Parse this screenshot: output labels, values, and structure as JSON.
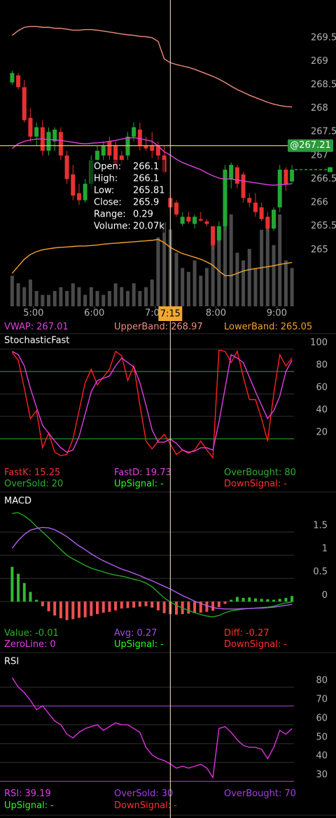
{
  "chart_data": [
    {
      "type": "candlestick",
      "x": [
        279,
        285,
        291,
        297,
        303,
        309,
        315,
        321,
        327,
        333,
        339,
        345,
        351,
        357,
        363,
        369,
        375,
        381,
        387,
        393,
        399,
        405,
        411,
        417,
        423,
        429,
        435,
        441,
        447,
        453,
        459,
        465,
        471,
        477,
        483,
        489,
        495,
        501,
        507,
        513,
        519,
        525,
        531,
        537,
        543,
        549,
        555
      ],
      "xlim": [
        267,
        557
      ],
      "xticks": [
        {
          "value": 300,
          "label": "5:00"
        },
        {
          "value": 360,
          "label": "6:00"
        },
        {
          "value": 420,
          "label": "7:00"
        },
        {
          "value": 480,
          "label": "8:00"
        },
        {
          "value": 540,
          "label": "9:00"
        }
      ],
      "ylim": [
        263.8,
        270.3
      ],
      "yticks": [
        265,
        265.5,
        266,
        266.5,
        267,
        267.5,
        268,
        268.5,
        269,
        269.5
      ],
      "grid": false,
      "open": [
        268.55,
        268.7,
        268.45,
        267.8,
        267.4,
        267.6,
        267.1,
        267.3,
        267.5,
        267.0,
        266.6,
        266.2,
        266.05,
        266.4,
        266.9,
        267.0,
        267.3,
        267.2,
        267.0,
        267.0,
        267.4,
        267.55,
        267.2,
        267.2,
        267.2,
        267.0,
        266.1,
        266.0,
        265.55,
        265.7,
        265.55,
        265.65,
        265.6,
        265.5,
        265.2,
        265.5,
        266.5,
        266.75,
        266.6,
        266.1,
        266.0,
        265.9,
        265.7,
        265.45,
        265.9,
        266.7,
        266.45
      ],
      "high": [
        268.8,
        268.75,
        268.6,
        268.0,
        267.7,
        267.75,
        267.6,
        267.6,
        267.6,
        267.1,
        266.8,
        266.4,
        266.5,
        267.0,
        267.2,
        267.3,
        267.4,
        267.3,
        267.1,
        267.5,
        267.7,
        267.7,
        267.4,
        267.5,
        267.3,
        267.2,
        266.1,
        266.05,
        265.8,
        265.8,
        265.75,
        265.8,
        265.65,
        265.5,
        265.6,
        266.8,
        266.85,
        266.8,
        266.65,
        266.2,
        266.2,
        266.0,
        265.8,
        265.9,
        266.8,
        266.75,
        266.8
      ],
      "low": [
        268.5,
        268.4,
        267.7,
        267.3,
        267.2,
        267.0,
        267.0,
        267.1,
        266.9,
        266.4,
        266.05,
        265.95,
        266.0,
        266.3,
        266.8,
        266.9,
        266.9,
        266.7,
        266.8,
        266.9,
        267.3,
        267.1,
        267.1,
        266.95,
        266.9,
        266.6,
        265.81,
        265.7,
        265.5,
        265.55,
        265.45,
        265.6,
        265.5,
        265.0,
        265.15,
        265.4,
        266.3,
        266.3,
        266.0,
        265.9,
        265.7,
        265.6,
        265.4,
        265.4,
        265.8,
        266.25,
        266.4
      ],
      "close": [
        268.75,
        268.45,
        267.75,
        267.4,
        267.6,
        267.1,
        267.5,
        267.55,
        267.0,
        266.5,
        266.15,
        266.05,
        266.4,
        266.9,
        267.1,
        267.2,
        267.0,
        266.8,
        266.9,
        267.4,
        267.6,
        267.2,
        267.15,
        267.1,
        267.0,
        266.65,
        265.9,
        265.75,
        265.7,
        265.6,
        265.7,
        265.62,
        265.55,
        265.1,
        265.5,
        266.7,
        266.8,
        266.4,
        266.1,
        266.0,
        265.8,
        265.65,
        265.45,
        265.85,
        266.7,
        266.4,
        266.7
      ],
      "up_color": "#22a833",
      "down_color": "#e83030",
      "volume": [
        8,
        6,
        5,
        7,
        4,
        3,
        3,
        4,
        5,
        4,
        6,
        5,
        3,
        5,
        4,
        3,
        4,
        6,
        5,
        4,
        6,
        4,
        5,
        7,
        18,
        22,
        20.07,
        14,
        10,
        9,
        12,
        8,
        10,
        18,
        20,
        26,
        24,
        14,
        12,
        15,
        10,
        20,
        22,
        16,
        24,
        12,
        10
      ],
      "vlim": [
        0,
        80
      ],
      "volume_color": "#4a4a4a",
      "series": [
        {
          "color": "#e040e0",
          "values": [
            267.15,
            267.25,
            267.3,
            267.33,
            267.35,
            267.35,
            267.34,
            267.33,
            267.32,
            267.3,
            267.28,
            267.26,
            267.25,
            267.26,
            267.27,
            267.28,
            267.3,
            267.32,
            267.35,
            267.37,
            267.38,
            267.36,
            267.33,
            267.3,
            267.2,
            267.08,
            267.01,
            266.92,
            266.85,
            266.8,
            266.75,
            266.7,
            266.63,
            266.57,
            266.52,
            266.5,
            266.5,
            266.48,
            266.46,
            266.44,
            266.42,
            266.4,
            266.38,
            266.37,
            266.38,
            266.39,
            266.4
          ]
        },
        {
          "color": "#f08c7c",
          "values": [
            269.55,
            269.65,
            269.72,
            269.74,
            269.74,
            269.72,
            269.72,
            269.7,
            269.7,
            269.68,
            269.66,
            269.66,
            269.67,
            269.67,
            269.66,
            269.64,
            269.62,
            269.6,
            269.58,
            269.56,
            269.55,
            269.53,
            269.52,
            269.5,
            269.42,
            269.05,
            268.97,
            268.93,
            268.9,
            268.87,
            268.83,
            268.78,
            268.73,
            268.68,
            268.62,
            268.55,
            268.47,
            268.4,
            268.34,
            268.28,
            268.23,
            268.18,
            268.13,
            268.09,
            268.06,
            268.04,
            268.03
          ]
        },
        {
          "color": "#f5a030",
          "values": [
            264.5,
            264.65,
            264.8,
            264.9,
            264.96,
            265.0,
            265.02,
            265.04,
            265.05,
            265.06,
            265.07,
            265.08,
            265.08,
            265.09,
            265.1,
            265.12,
            265.13,
            265.14,
            265.15,
            265.16,
            265.17,
            265.18,
            265.19,
            265.2,
            265.22,
            265.15,
            265.05,
            264.98,
            264.92,
            264.88,
            264.84,
            264.8,
            264.74,
            264.67,
            264.55,
            264.45,
            264.45,
            264.5,
            264.55,
            264.58,
            264.6,
            264.62,
            264.64,
            264.66,
            264.69,
            264.71,
            264.73
          ]
        }
      ],
      "legend": [
        {
          "label": "VWAP:",
          "value": 267.01,
          "color": "#e040e0"
        },
        {
          "label": "UpperBand:",
          "value": 268.97,
          "color": "#f08c7c"
        },
        {
          "label": "LowerBand:",
          "value": 265.05,
          "color": "#f5a030"
        }
      ],
      "cursor": {
        "x": {
          "value": 435,
          "label": "7:15"
        },
        "y": {
          "value": 267.21,
          "label": "@267.21"
        }
      },
      "tooltip": [
        {
          "label": "Open:",
          "value": 266.1
        },
        {
          "label": "High:",
          "value": 266.1
        },
        {
          "label": "Low:",
          "value": 265.81
        },
        {
          "label": "Close:",
          "value": 265.9
        },
        {
          "label": "Range:",
          "value": 0.29
        },
        {
          "label": "Volume:",
          "value": "20.07k"
        }
      ]
    },
    {
      "type": "line",
      "title": "StochasticFast",
      "x": [
        279,
        285,
        291,
        297,
        303,
        309,
        315,
        321,
        327,
        333,
        339,
        345,
        351,
        357,
        363,
        369,
        375,
        381,
        387,
        393,
        399,
        405,
        411,
        417,
        423,
        429,
        435,
        441,
        447,
        453,
        459,
        465,
        471,
        477,
        483,
        489,
        495,
        501,
        507,
        513,
        519,
        525,
        531,
        537,
        543,
        549,
        555
      ],
      "xlim": [
        267,
        557
      ],
      "ylim": [
        0,
        105
      ],
      "yticks": [
        20,
        40,
        60,
        80,
        100
      ],
      "grid": true,
      "series": [
        {
          "color": "#ff2020",
          "values": [
            97,
            90,
            65,
            38,
            45,
            12,
            25,
            8,
            5,
            6,
            20,
            45,
            70,
            82,
            68,
            75,
            82,
            98,
            94,
            72,
            85,
            50,
            18,
            11,
            18,
            24,
            15.25,
            6,
            10,
            7,
            10,
            18,
            10,
            3,
            99,
            98,
            88,
            98,
            75,
            55,
            55,
            38,
            18,
            60,
            95,
            85,
            92
          ]
        },
        {
          "color": "#e040e0",
          "values": [
            98,
            95,
            85,
            65,
            48,
            32,
            25,
            18,
            12,
            8,
            10,
            22,
            42,
            62,
            72,
            74,
            76,
            85,
            92,
            88,
            84,
            70,
            50,
            28,
            17,
            17,
            19.73,
            16,
            10,
            8,
            9,
            12,
            12,
            10,
            35,
            65,
            95,
            92,
            88,
            75,
            62,
            50,
            38,
            45,
            58,
            80,
            90
          ]
        }
      ],
      "legend": [
        {
          "label": "FastK:",
          "value": 15.25,
          "color": "#ff3030"
        },
        {
          "label": "FastD:",
          "value": 19.73,
          "color": "#e040e0"
        },
        {
          "label": "OverBought:",
          "value": 80,
          "color": "#2fae2f",
          "level": true
        },
        {
          "label": "OverSold:",
          "value": 20,
          "color": "#2fae2f",
          "level": true
        },
        {
          "label": "UpSignal:",
          "value": "-",
          "color": "#22ff22"
        },
        {
          "label": "DownSignal:",
          "value": "-",
          "color": "#ff3030"
        }
      ]
    },
    {
      "type": "combo",
      "title": "MACD",
      "x": [
        279,
        285,
        291,
        297,
        303,
        309,
        315,
        321,
        327,
        333,
        339,
        345,
        351,
        357,
        363,
        369,
        375,
        381,
        387,
        393,
        399,
        405,
        411,
        417,
        423,
        429,
        435,
        441,
        447,
        453,
        459,
        465,
        471,
        477,
        483,
        489,
        495,
        501,
        507,
        513,
        519,
        525,
        531,
        537,
        543,
        549,
        555
      ],
      "xlim": [
        267,
        557
      ],
      "ylim": [
        -0.48,
        2.0
      ],
      "yticks": [
        0,
        0.5,
        1,
        1.5
      ],
      "grid": true,
      "bars": {
        "up_color": "#33b833",
        "down_color": "#f05050",
        "values": [
          0.75,
          0.6,
          0.4,
          0.21,
          0.04,
          -0.1,
          -0.21,
          -0.3,
          -0.36,
          -0.4,
          -0.38,
          -0.35,
          -0.34,
          -0.31,
          -0.27,
          -0.24,
          -0.22,
          -0.19,
          -0.15,
          -0.14,
          -0.13,
          -0.11,
          -0.1,
          -0.13,
          -0.19,
          -0.25,
          -0.27,
          -0.28,
          -0.27,
          -0.26,
          -0.25,
          -0.24,
          -0.22,
          -0.2,
          -0.12,
          -0.05,
          0.04,
          0.1,
          0.08,
          0.09,
          0.07,
          0.06,
          0.05,
          0.04,
          0.06,
          0.08,
          0.12
        ]
      },
      "series": [
        {
          "color": "#22a822",
          "values": [
            1.9,
            1.92,
            1.85,
            1.75,
            1.62,
            1.5,
            1.38,
            1.25,
            1.12,
            1.0,
            0.92,
            0.85,
            0.78,
            0.72,
            0.68,
            0.64,
            0.6,
            0.57,
            0.55,
            0.52,
            0.48,
            0.45,
            0.4,
            0.32,
            0.2,
            0.08,
            -0.01,
            -0.08,
            -0.14,
            -0.19,
            -0.24,
            -0.28,
            -0.31,
            -0.33,
            -0.3,
            -0.24,
            -0.2,
            -0.18,
            -0.16,
            -0.15,
            -0.14,
            -0.13,
            -0.12,
            -0.1,
            -0.06,
            -0.03,
            -0.01
          ]
        },
        {
          "color": "#b060f0",
          "values": [
            1.15,
            1.32,
            1.45,
            1.54,
            1.58,
            1.6,
            1.59,
            1.55,
            1.48,
            1.4,
            1.3,
            1.2,
            1.12,
            1.03,
            0.95,
            0.88,
            0.82,
            0.76,
            0.7,
            0.66,
            0.61,
            0.56,
            0.5,
            0.45,
            0.39,
            0.33,
            0.27,
            0.2,
            0.13,
            0.07,
            0.01,
            -0.04,
            -0.09,
            -0.13,
            -0.15,
            -0.16,
            -0.16,
            -0.16,
            -0.15,
            -0.15,
            -0.14,
            -0.14,
            -0.13,
            -0.12,
            -0.1,
            -0.08,
            -0.06
          ]
        }
      ],
      "legend": [
        {
          "label": "Value:",
          "value": -0.01,
          "color": "#2fae2f"
        },
        {
          "label": "Avg:",
          "value": 0.27,
          "color": "#a050e0"
        },
        {
          "label": "Diff:",
          "value": -0.27,
          "color": "#ff3030"
        },
        {
          "label": "ZeroLine:",
          "value": 0,
          "color": "#e040e0"
        },
        {
          "label": "UpSignal:",
          "value": "-",
          "color": "#22ff22"
        },
        {
          "label": "DownSignal:",
          "value": "-",
          "color": "#ff3030"
        }
      ]
    },
    {
      "type": "line",
      "title": "RSI",
      "x": [
        279,
        285,
        291,
        297,
        303,
        309,
        315,
        321,
        327,
        333,
        339,
        345,
        351,
        357,
        363,
        369,
        375,
        381,
        387,
        393,
        399,
        405,
        411,
        417,
        423,
        429,
        435,
        441,
        447,
        453,
        459,
        465,
        471,
        477,
        483,
        489,
        495,
        501,
        507,
        513,
        519,
        525,
        531,
        537,
        543,
        549,
        555
      ],
      "xlim": [
        267,
        557
      ],
      "ylim": [
        28,
        89
      ],
      "yticks": [
        30,
        40,
        50,
        60,
        70,
        80
      ],
      "grid": true,
      "series": [
        {
          "color": "#e030e0",
          "values": [
            85,
            80,
            77,
            73,
            68,
            70,
            66,
            62,
            60,
            55,
            53,
            56,
            58,
            59,
            60,
            57,
            59,
            61,
            60,
            60,
            58,
            56,
            48,
            44,
            42,
            41,
            39.19,
            37,
            38,
            37,
            38,
            39,
            37,
            32,
            58,
            59,
            56,
            52,
            49,
            48,
            48,
            47,
            42,
            48,
            57,
            55,
            58
          ]
        }
      ],
      "legend": [
        {
          "label": "RSI:",
          "value": 39.19,
          "color": "#e040e0"
        },
        {
          "label": "OverSold:",
          "value": 30,
          "color": "#a040e0",
          "level": true
        },
        {
          "label": "OverBought:",
          "value": 70,
          "color": "#a040e0",
          "level": true
        },
        {
          "label": "UpSignal:",
          "value": "-",
          "color": "#22ff22"
        },
        {
          "label": "DownSignal:",
          "value": "-",
          "color": "#ff3030"
        }
      ]
    }
  ]
}
